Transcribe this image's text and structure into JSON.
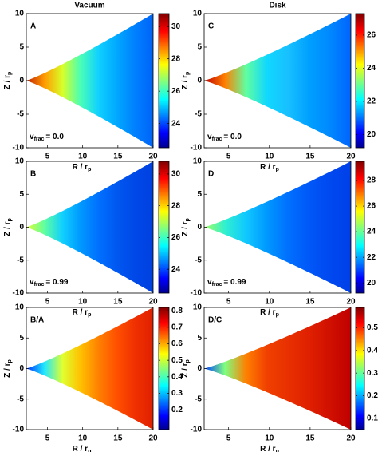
{
  "chart_data": [
    {
      "type": "heatmap",
      "title": "Vacuum",
      "label": "A",
      "annotation": {
        "main": "v",
        "sub": "frac",
        "rest": "= 0.0"
      },
      "xlabel": {
        "main": "R / r",
        "sub": "p"
      },
      "ylabel": {
        "main": "Z / r",
        "sub": "p"
      },
      "xlim": [
        2,
        20
      ],
      "xticks": [
        5,
        10,
        15,
        20
      ],
      "ylim": [
        -10,
        10
      ],
      "yticks": [
        -10,
        -5,
        0,
        5,
        10
      ],
      "colorbar": {
        "lim": [
          22.5,
          30.8
        ],
        "ticks": [
          24,
          26,
          28,
          30
        ]
      },
      "fill_colors": [
        "#c02000",
        "#ff9a00",
        "#d8ff28",
        "#48ffb8",
        "#10d0ff",
        "#00a8ff",
        "#0080ff",
        "#0064f8"
      ]
    },
    {
      "type": "heatmap",
      "title": "Disk",
      "label": "C",
      "annotation": {
        "main": "v",
        "sub": "frac",
        "rest": "= 0.0"
      },
      "xlabel": {
        "main": "R / r",
        "sub": "p"
      },
      "ylabel": {
        "main": "Z / r",
        "sub": "p"
      },
      "xlim": [
        2,
        20
      ],
      "xticks": [
        5,
        10,
        15,
        20
      ],
      "ylim": [
        -10,
        10
      ],
      "yticks": [
        -10,
        -5,
        0,
        5,
        10
      ],
      "colorbar": {
        "lim": [
          19.2,
          27.3
        ],
        "ticks": [
          20,
          22,
          24,
          26
        ]
      },
      "fill_colors": [
        "#c00000",
        "#ff8000",
        "#60ffa0",
        "#10d8ff",
        "#18c0ff",
        "#00a0ff",
        "#0088ff",
        "#0064ff"
      ]
    },
    {
      "type": "heatmap",
      "label": "B",
      "annotation": {
        "main": "v",
        "sub": "frac",
        "rest": "= 0.99"
      },
      "xlabel": {
        "main": "R / r",
        "sub": "p"
      },
      "ylabel": {
        "main": "Z / r",
        "sub": "p"
      },
      "xlim": [
        2,
        20
      ],
      "xticks": [
        5,
        10,
        15,
        20
      ],
      "ylim": [
        -10,
        10
      ],
      "yticks": [
        -10,
        -5,
        0,
        5,
        10
      ],
      "colorbar": {
        "lim": [
          22.5,
          30.8
        ],
        "ticks": [
          24,
          26,
          28,
          30
        ]
      },
      "fill_colors": [
        "#e0ff30",
        "#60ffa0",
        "#10d0ff",
        "#0098ff",
        "#0070ff",
        "#0058f0",
        "#0048e8",
        "#0040e0"
      ]
    },
    {
      "type": "heatmap",
      "label": "D",
      "annotation": {
        "main": "v",
        "sub": "frac",
        "rest": "= 0.99"
      },
      "xlabel": {
        "main": "R / r",
        "sub": "p"
      },
      "ylabel": {
        "main": "Z / r",
        "sub": "p"
      },
      "xlim": [
        2,
        20
      ],
      "xticks": [
        5,
        10,
        15,
        20
      ],
      "ylim": [
        -10,
        10
      ],
      "yticks": [
        -10,
        -5,
        0,
        5,
        10
      ],
      "colorbar": {
        "lim": [
          19.2,
          29.5
        ],
        "ticks": [
          20,
          22,
          24,
          26,
          28
        ]
      },
      "fill_colors": [
        "#a0ff60",
        "#30f0d0",
        "#10c8ff",
        "#0098ff",
        "#0070ff",
        "#0058f8",
        "#0048f0",
        "#0040e8"
      ]
    },
    {
      "type": "heatmap",
      "label": "B/A",
      "xlabel": {
        "main": "R / r",
        "sub": "p"
      },
      "ylabel": {
        "main": "Z / r",
        "sub": "p"
      },
      "xlim": [
        2,
        20
      ],
      "xticks": [
        5,
        10,
        15,
        20
      ],
      "ylim": [
        -10,
        10
      ],
      "yticks": [
        -10,
        -5,
        0,
        5,
        10
      ],
      "colorbar": {
        "lim": [
          0.08,
          0.82
        ],
        "ticks": [
          0.2,
          0.3,
          0.4,
          0.5,
          0.6,
          0.7,
          0.8
        ]
      },
      "fill_colors": [
        "#0030ff",
        "#20e8ff",
        "#e0ff30",
        "#ffc000",
        "#ff8000",
        "#ff5000",
        "#f03000",
        "#e02000"
      ]
    },
    {
      "type": "heatmap",
      "label": "D/C",
      "xlabel": {
        "main": "R / r",
        "sub": "p"
      },
      "ylabel": {
        "main": "Z / r",
        "sub": "p"
      },
      "xlim": [
        2,
        20
      ],
      "xticks": [
        5,
        10,
        15,
        20
      ],
      "ylim": [
        -10,
        10
      ],
      "yticks": [
        -10,
        -5,
        0,
        5,
        10
      ],
      "colorbar": {
        "lim": [
          0.05,
          0.59
        ],
        "ticks": [
          0.1,
          0.2,
          0.3,
          0.4,
          0.5
        ]
      },
      "fill_colors": [
        "#0040ff",
        "#80ff80",
        "#ff8000",
        "#f04000",
        "#e83000",
        "#e02000",
        "#d01000",
        "#c00000"
      ]
    }
  ]
}
